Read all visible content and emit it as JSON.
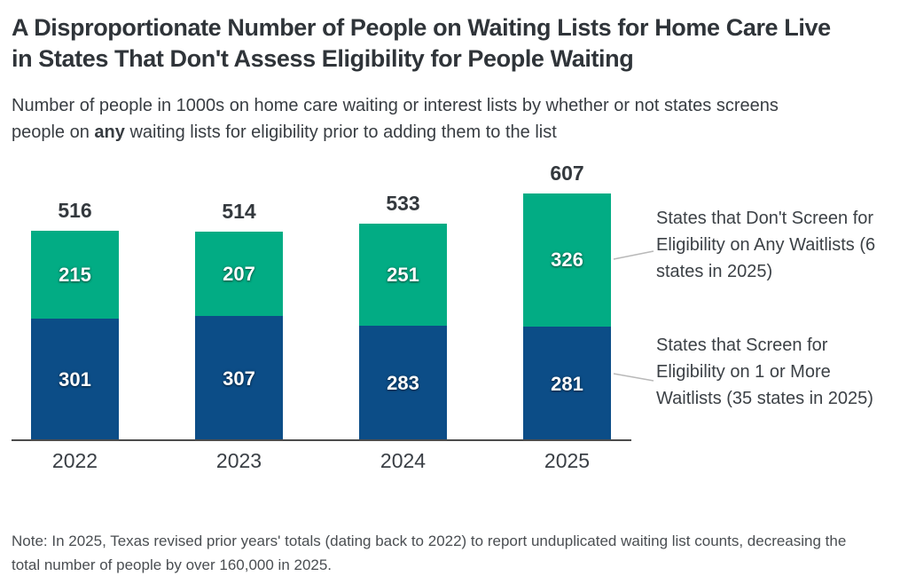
{
  "header": {
    "title": "A Disproportionate Number of People on Waiting Lists for Home Care Live in States That Don't Assess Eligibility for People Waiting",
    "subtitle_prefix": "Number of people in 1000s on home care waiting or interest lists by whether or not states screens people on ",
    "subtitle_bold": "any",
    "subtitle_suffix": " waiting lists for eligibility prior to adding them to the list"
  },
  "chart_data": {
    "type": "bar",
    "variant": "stacked",
    "title": "A Disproportionate Number of People on Waiting Lists for Home Care Live in States That Don't Assess Eligibility for People Waiting",
    "subtitle": "Number of people in 1000s on home care waiting or interest lists by whether or not states screens people on any waiting lists for eligibility prior to adding them to the list",
    "categories": [
      "2022",
      "2023",
      "2024",
      "2025"
    ],
    "series": [
      {
        "name": "States that Screen for Eligibility on 1 or More Waitlists (35 states in 2025)",
        "color": "#0C4D87",
        "values": [
          301,
          307,
          283,
          281
        ]
      },
      {
        "name": "States that Don't Screen for Eligibility on Any Waitlists (6 states in 2025)",
        "color": "#02AC84",
        "values": [
          215,
          207,
          251,
          326
        ]
      }
    ],
    "totals": [
      516,
      514,
      533,
      607
    ],
    "xlabel": "",
    "ylabel": "Number of people in 1000s",
    "ylim": [
      0,
      650
    ],
    "grid": false,
    "legend_position": "right",
    "value_labels": "inside-white",
    "total_labels": "above-bars"
  },
  "legend": {
    "items": [
      {
        "label": "States that Don't Screen for Eligibility on Any Waitlists (6 states in 2025)"
      },
      {
        "label": "States that Screen for Eligibility on 1 or More Waitlists (35 states in 2025)"
      }
    ]
  },
  "note": {
    "text": "Note: In 2025, Texas revised prior years' totals (dating back to 2022) to report unduplicated waiting list counts, decreasing the total number of people by over 160,000 in 2025."
  },
  "colors": {
    "green": "#02AC84",
    "blue": "#0C4D87",
    "axis": "#4C4C4C",
    "leader_line": "#B9B9B9",
    "title_text": "#2F3439",
    "body_text": "#3C4146"
  }
}
